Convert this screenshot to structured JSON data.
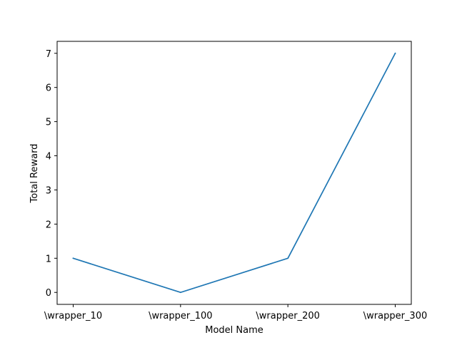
{
  "chart_data": {
    "type": "line",
    "categories": [
      "\\wrapper_10",
      "\\wrapper_100",
      "\\wrapper_200",
      "\\wrapper_300"
    ],
    "series": [
      {
        "values": [
          1,
          0,
          1,
          7
        ],
        "color": "#1f77b4"
      }
    ],
    "title": "",
    "xlabel": "Model Name",
    "ylabel": "Total Reward",
    "ylim": [
      -0.35,
      7.35
    ],
    "yticks": [
      0,
      1,
      2,
      3,
      4,
      5,
      6,
      7
    ],
    "grid": false,
    "legend": "none"
  }
}
